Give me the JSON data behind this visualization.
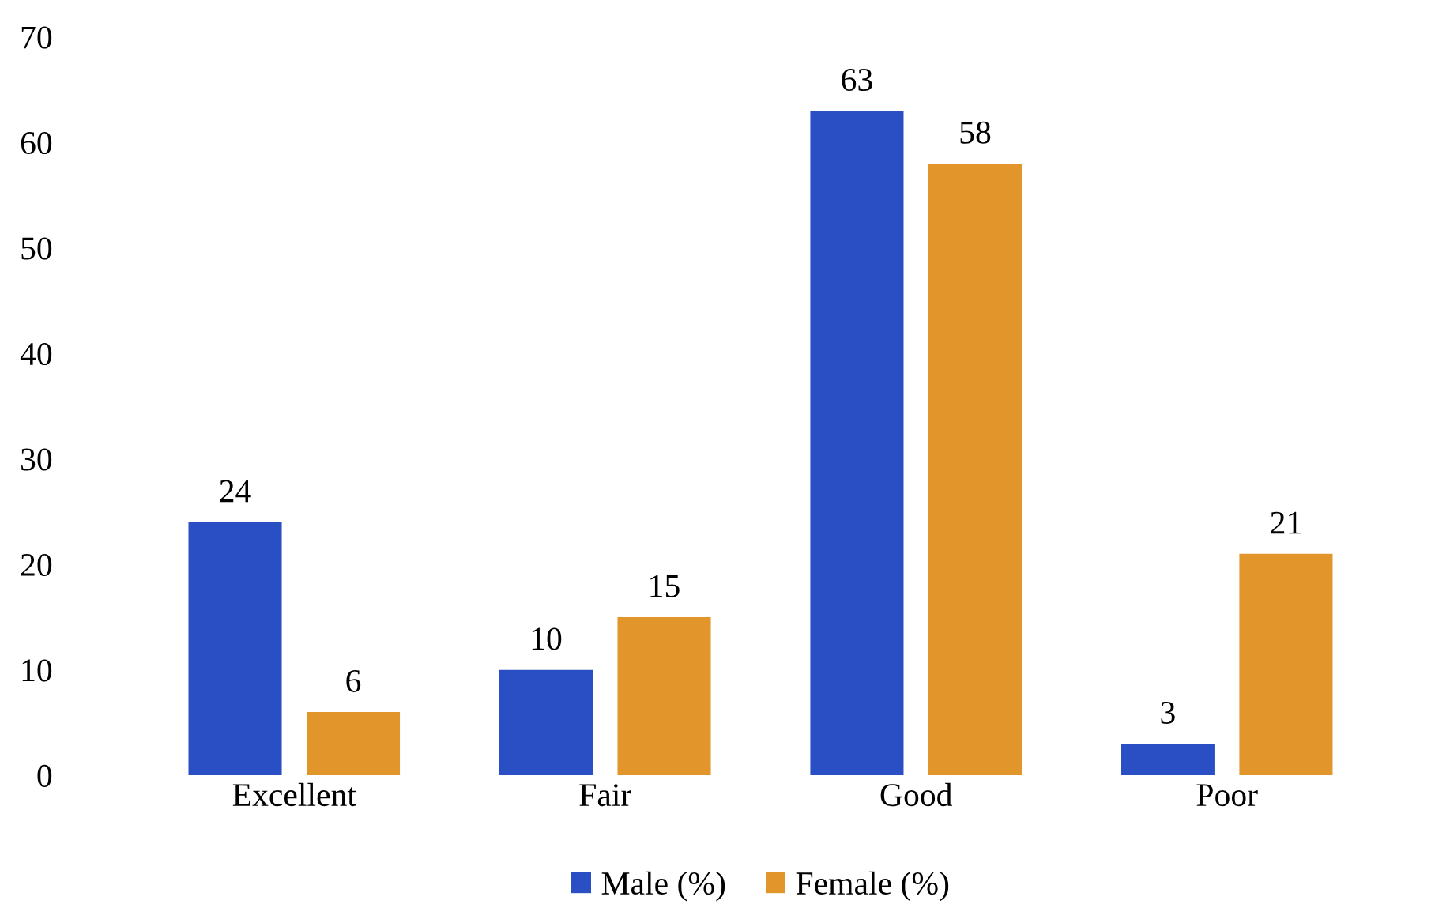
{
  "chart_data": {
    "type": "bar",
    "categories": [
      "Excellent",
      "Fair",
      "Good",
      "Poor"
    ],
    "series": [
      {
        "name": "Male (%)",
        "color": "#2a4fc4",
        "values": [
          24,
          10,
          63,
          3
        ]
      },
      {
        "name": "Female (%)",
        "color": "#e2952a",
        "values": [
          6,
          15,
          58,
          21
        ]
      }
    ],
    "ylim": [
      0,
      70
    ],
    "yticks": [
      0,
      10,
      20,
      30,
      40,
      50,
      60,
      70
    ],
    "data_labels": true,
    "legend": "bottom",
    "grid": false
  }
}
